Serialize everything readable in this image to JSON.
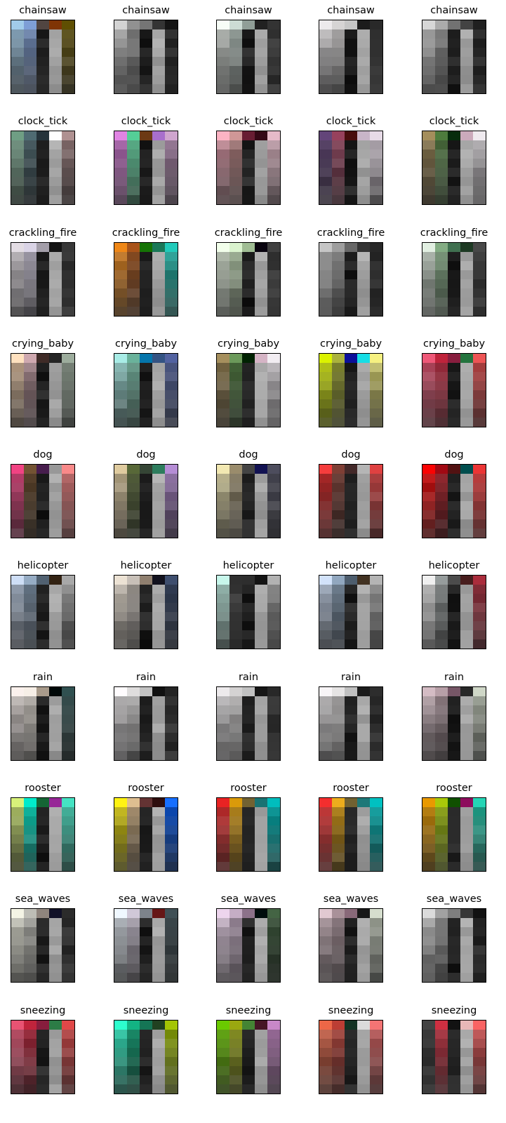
{
  "chart_data": {
    "type": "heatmap",
    "grid": "5 columns per class row, one heatmap image per panel",
    "palette": {
      "gray": "#111111-#ffffff",
      "accent": "per-panel tinted RGB"
    },
    "panels": [
      {
        "class_title": "chainsaw",
        "rows": 8,
        "cols": 5,
        "tone": "blue-olive"
      },
      {
        "class_title": "chainsaw",
        "rows": 8,
        "cols": 5,
        "tone": "gray"
      },
      {
        "class_title": "chainsaw",
        "rows": 8,
        "cols": 5,
        "tone": "gray-mint"
      },
      {
        "class_title": "chainsaw",
        "rows": 8,
        "cols": 5,
        "tone": "light-gray"
      },
      {
        "class_title": "chainsaw",
        "rows": 8,
        "cols": 5,
        "tone": "gray"
      },
      {
        "class_title": "clock_tick",
        "rows": 8,
        "cols": 5,
        "tone": "teal-pink"
      },
      {
        "class_title": "clock_tick",
        "rows": 8,
        "cols": 5,
        "tone": "magenta-green"
      },
      {
        "class_title": "clock_tick",
        "rows": 8,
        "cols": 5,
        "tone": "pink-maroon"
      },
      {
        "class_title": "clock_tick",
        "rows": 8,
        "cols": 5,
        "tone": "purple-maroon"
      },
      {
        "class_title": "clock_tick",
        "rows": 8,
        "cols": 5,
        "tone": "olive-green"
      },
      {
        "class_title": "crackling_fire",
        "rows": 8,
        "cols": 5,
        "tone": "pastel-gray"
      },
      {
        "class_title": "crackling_fire",
        "rows": 8,
        "cols": 5,
        "tone": "orange-teal"
      },
      {
        "class_title": "crackling_fire",
        "rows": 8,
        "cols": 5,
        "tone": "light-green"
      },
      {
        "class_title": "crackling_fire",
        "rows": 8,
        "cols": 5,
        "tone": "gray"
      },
      {
        "class_title": "crackling_fire",
        "rows": 8,
        "cols": 5,
        "tone": "green"
      },
      {
        "class_title": "crying_baby",
        "rows": 8,
        "cols": 5,
        "tone": "peach-dark"
      },
      {
        "class_title": "crying_baby",
        "rows": 8,
        "cols": 5,
        "tone": "teal-blue"
      },
      {
        "class_title": "crying_baby",
        "rows": 8,
        "cols": 5,
        "tone": "olive-green"
      },
      {
        "class_title": "crying_baby",
        "rows": 8,
        "cols": 5,
        "tone": "yellow-blue"
      },
      {
        "class_title": "crying_baby",
        "rows": 8,
        "cols": 5,
        "tone": "red-green"
      },
      {
        "class_title": "dog",
        "rows": 8,
        "cols": 5,
        "tone": "pink-dark"
      },
      {
        "class_title": "dog",
        "rows": 8,
        "cols": 5,
        "tone": "beige-green"
      },
      {
        "class_title": "dog",
        "rows": 8,
        "cols": 5,
        "tone": "beige-navy"
      },
      {
        "class_title": "dog",
        "rows": 8,
        "cols": 5,
        "tone": "red-brown"
      },
      {
        "class_title": "dog",
        "rows": 8,
        "cols": 5,
        "tone": "red"
      },
      {
        "class_title": "helicopter",
        "rows": 8,
        "cols": 5,
        "tone": "blue-gray"
      },
      {
        "class_title": "helicopter",
        "rows": 8,
        "cols": 5,
        "tone": "beige-gray"
      },
      {
        "class_title": "helicopter",
        "rows": 8,
        "cols": 5,
        "tone": "dark-gray"
      },
      {
        "class_title": "helicopter",
        "rows": 8,
        "cols": 5,
        "tone": "blue-gray"
      },
      {
        "class_title": "helicopter",
        "rows": 8,
        "cols": 5,
        "tone": "gray-red"
      },
      {
        "class_title": "rain",
        "rows": 8,
        "cols": 5,
        "tone": "cream"
      },
      {
        "class_title": "rain",
        "rows": 8,
        "cols": 5,
        "tone": "light-gray"
      },
      {
        "class_title": "rain",
        "rows": 8,
        "cols": 5,
        "tone": "light-gray"
      },
      {
        "class_title": "rain",
        "rows": 8,
        "cols": 5,
        "tone": "light-gray"
      },
      {
        "class_title": "rain",
        "rows": 8,
        "cols": 5,
        "tone": "pink-gray"
      },
      {
        "class_title": "rooster",
        "rows": 8,
        "cols": 5,
        "tone": "lime-cyan"
      },
      {
        "class_title": "rooster",
        "rows": 8,
        "cols": 5,
        "tone": "yellow-brown"
      },
      {
        "class_title": "rooster",
        "rows": 8,
        "cols": 5,
        "tone": "red-teal"
      },
      {
        "class_title": "rooster",
        "rows": 8,
        "cols": 5,
        "tone": "red-teal"
      },
      {
        "class_title": "rooster",
        "rows": 8,
        "cols": 5,
        "tone": "orange-green"
      },
      {
        "class_title": "sea_waves",
        "rows": 8,
        "cols": 5,
        "tone": "cream-gray"
      },
      {
        "class_title": "sea_waves",
        "rows": 8,
        "cols": 5,
        "tone": "lavender-gray"
      },
      {
        "class_title": "sea_waves",
        "rows": 8,
        "cols": 5,
        "tone": "lavender"
      },
      {
        "class_title": "sea_waves",
        "rows": 8,
        "cols": 5,
        "tone": "pink-gray"
      },
      {
        "class_title": "sea_waves",
        "rows": 8,
        "cols": 5,
        "tone": "gray"
      },
      {
        "class_title": "sneezing",
        "rows": 8,
        "cols": 5,
        "tone": "red-green"
      },
      {
        "class_title": "sneezing",
        "rows": 8,
        "cols": 5,
        "tone": "aqua-green"
      },
      {
        "class_title": "sneezing",
        "rows": 8,
        "cols": 5,
        "tone": "lime-pink"
      },
      {
        "class_title": "sneezing",
        "rows": 8,
        "cols": 5,
        "tone": "salmon"
      },
      {
        "class_title": "sneezing",
        "rows": 8,
        "cols": 5,
        "tone": "salmon-dark"
      }
    ]
  }
}
